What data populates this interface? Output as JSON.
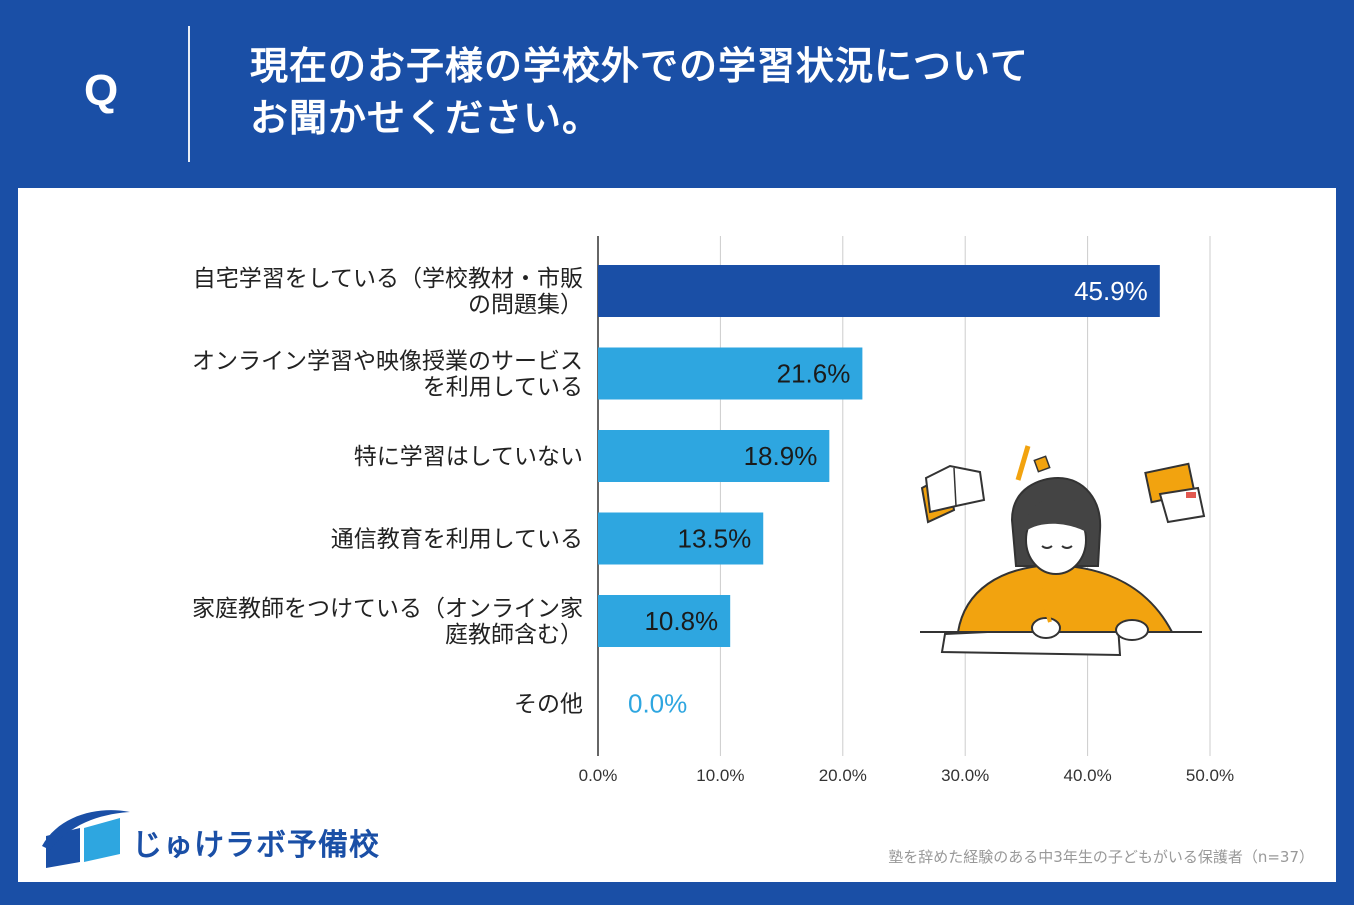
{
  "header": {
    "q_label": "Q",
    "title_line1": "現在のお子様の学校外での学習状況について",
    "title_line2": "お聞かせください。"
  },
  "chart_data": {
    "type": "bar",
    "orientation": "horizontal",
    "categories": [
      [
        "自宅学習をしている（学校教材・市販",
        "の問題集）"
      ],
      [
        "オンライン学習や映像授業のサービス",
        "を利用している"
      ],
      [
        "特に学習はしていない"
      ],
      [
        "通信教育を利用している"
      ],
      [
        "家庭教師をつけている（オンライン家",
        "庭教師含む）"
      ],
      [
        "その他"
      ]
    ],
    "values": [
      45.9,
      21.6,
      18.9,
      13.5,
      10.8,
      0.0
    ],
    "value_labels": [
      "45.9%",
      "21.6%",
      "18.9%",
      "13.5%",
      "10.8%",
      "0.0%"
    ],
    "xlim": [
      0,
      50
    ],
    "ticks": [
      0,
      10,
      20,
      30,
      40,
      50
    ],
    "tick_labels": [
      "0.0%",
      "10.0%",
      "20.0%",
      "30.0%",
      "40.0%",
      "50.0%"
    ],
    "grid": true,
    "colors": {
      "highlight": "#1a4fa6",
      "normal": "#2ea6e0",
      "grid": "#cccccc",
      "zero_label": "#2ea6e0"
    }
  },
  "brand": {
    "name": "じゅけラボ予備校",
    "color": "#1a4fa6"
  },
  "footnote": "塾を辞めた経験のある中3年生の子どもがいる保護者（n=37）"
}
